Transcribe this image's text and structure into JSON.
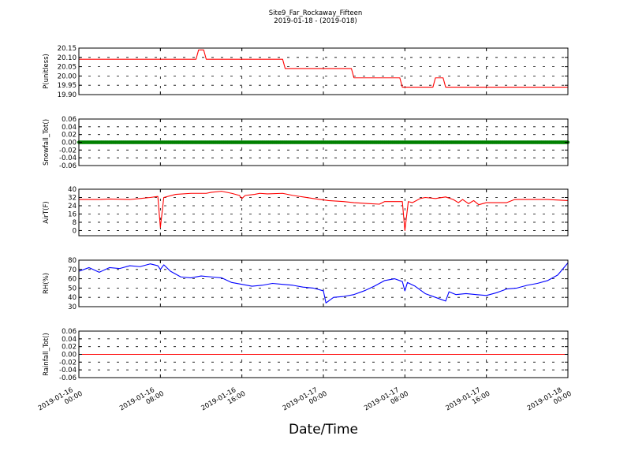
{
  "figure": {
    "title": "Site9_Far_Rockaway_Fifteen",
    "subtitle": "2019-01-18 - (2019-018)",
    "xlabel": "Date/Time"
  },
  "x_axis": {
    "start": "2019-01-16 00:00",
    "end": "2019-01-18 00:00",
    "ticks": [
      {
        "t": "2019-01-16 00:00",
        "line1": "2019-01-16",
        "line2": "00:00"
      },
      {
        "t": "2019-01-16 08:00",
        "line1": "2019-01-16",
        "line2": "08:00"
      },
      {
        "t": "2019-01-16 16:00",
        "line1": "2019-01-16",
        "line2": "16:00"
      },
      {
        "t": "2019-01-17 00:00",
        "line1": "2019-01-17",
        "line2": "00:00"
      },
      {
        "t": "2019-01-17 08:00",
        "line1": "2019-01-17",
        "line2": "08:00"
      },
      {
        "t": "2019-01-17 16:00",
        "line1": "2019-01-17",
        "line2": "16:00"
      },
      {
        "t": "2019-01-18 00:00",
        "line1": "2019-01-18",
        "line2": "00:00"
      }
    ]
  },
  "chart_data": [
    {
      "type": "line",
      "ylabel": "P(unitless)",
      "ylim": [
        19.9,
        20.15
      ],
      "yticks": [
        "19.90",
        "19.95",
        "20.00",
        "20.05",
        "20.10",
        "20.15"
      ],
      "grid": true,
      "series": [
        {
          "color": "#ff0000",
          "points": [
            [
              "2019-01-16 00:00",
              20.09
            ],
            [
              "2019-01-16 11:30",
              20.09
            ],
            [
              "2019-01-16 11:45",
              20.14
            ],
            [
              "2019-01-16 12:15",
              20.14
            ],
            [
              "2019-01-16 12:30",
              20.09
            ],
            [
              "2019-01-16 20:00",
              20.09
            ],
            [
              "2019-01-16 20:15",
              20.04
            ],
            [
              "2019-01-17 02:45",
              20.04
            ],
            [
              "2019-01-17 03:00",
              19.99
            ],
            [
              "2019-01-17 07:30",
              19.99
            ],
            [
              "2019-01-17 07:45",
              19.94
            ],
            [
              "2019-01-17 10:45",
              19.94
            ],
            [
              "2019-01-17 11:00",
              19.99
            ],
            [
              "2019-01-17 11:45",
              19.99
            ],
            [
              "2019-01-17 12:00",
              19.94
            ],
            [
              "2019-01-18 00:00",
              19.94
            ]
          ]
        }
      ]
    },
    {
      "type": "line",
      "ylabel": "Snowfall_Tot()",
      "ylim": [
        -0.06,
        0.06
      ],
      "yticks": [
        "-0.06",
        "-0.04",
        "-0.02",
        "0.00",
        "0.02",
        "0.04",
        "0.06"
      ],
      "grid": true,
      "series": [
        {
          "color": "#008000",
          "marker": "dot",
          "points": [
            [
              "2019-01-16 00:00",
              0.0
            ],
            [
              "2019-01-18 00:00",
              0.0
            ]
          ]
        }
      ]
    },
    {
      "type": "line",
      "ylabel": "AirT(F)",
      "ylim": [
        -5,
        40
      ],
      "yticks": [
        "0",
        "8",
        "16",
        "24",
        "32",
        "40"
      ],
      "grid": true,
      "series": [
        {
          "color": "#ff0000",
          "points": [
            [
              "2019-01-16 00:00",
              30
            ],
            [
              "2019-01-16 02:00",
              30
            ],
            [
              "2019-01-16 03:00",
              30.5
            ],
            [
              "2019-01-16 05:00",
              30
            ],
            [
              "2019-01-16 06:00",
              31
            ],
            [
              "2019-01-16 07:00",
              32
            ],
            [
              "2019-01-16 07:45",
              33
            ],
            [
              "2019-01-16 08:00",
              3
            ],
            [
              "2019-01-16 08:20",
              32
            ],
            [
              "2019-01-16 09:30",
              35
            ],
            [
              "2019-01-16 11:00",
              36
            ],
            [
              "2019-01-16 12:30",
              36
            ],
            [
              "2019-01-16 13:00",
              37
            ],
            [
              "2019-01-16 14:00",
              38
            ],
            [
              "2019-01-16 15:00",
              36
            ],
            [
              "2019-01-16 15:45",
              34
            ],
            [
              "2019-01-16 16:00",
              31
            ],
            [
              "2019-01-16 16:20",
              34
            ],
            [
              "2019-01-16 17:15",
              35
            ],
            [
              "2019-01-16 17:45",
              36
            ],
            [
              "2019-01-16 18:30",
              35.5
            ],
            [
              "2019-01-16 20:00",
              36
            ],
            [
              "2019-01-16 21:00",
              34
            ],
            [
              "2019-01-16 23:00",
              31
            ],
            [
              "2019-01-17 00:30",
              29
            ],
            [
              "2019-01-17 02:00",
              28
            ],
            [
              "2019-01-17 03:00",
              27
            ],
            [
              "2019-01-17 04:30",
              26
            ],
            [
              "2019-01-17 05:30",
              25.5
            ],
            [
              "2019-01-17 06:00",
              28
            ],
            [
              "2019-01-17 07:45",
              28
            ],
            [
              "2019-01-17 08:00",
              0
            ],
            [
              "2019-01-17 08:20",
              28
            ],
            [
              "2019-01-17 08:45",
              27
            ],
            [
              "2019-01-17 09:30",
              31
            ],
            [
              "2019-01-17 10:00",
              32
            ],
            [
              "2019-01-17 11:00",
              31
            ],
            [
              "2019-01-17 12:00",
              32.5
            ],
            [
              "2019-01-17 12:45",
              30
            ],
            [
              "2019-01-17 13:15",
              27
            ],
            [
              "2019-01-17 13:40",
              30
            ],
            [
              "2019-01-17 14:15",
              26
            ],
            [
              "2019-01-17 14:45",
              29
            ],
            [
              "2019-01-17 15:15",
              25
            ],
            [
              "2019-01-17 16:00",
              27
            ],
            [
              "2019-01-17 18:00",
              27
            ],
            [
              "2019-01-17 18:45",
              30
            ],
            [
              "2019-01-17 20:00",
              30
            ],
            [
              "2019-01-17 22:00",
              30
            ],
            [
              "2019-01-18 00:00",
              29
            ]
          ]
        }
      ]
    },
    {
      "type": "line",
      "ylabel": "RH(%)",
      "ylim": [
        30,
        80
      ],
      "yticks": [
        "30",
        "40",
        "50",
        "60",
        "70",
        "80"
      ],
      "grid": true,
      "series": [
        {
          "color": "#0000ff",
          "points": [
            [
              "2019-01-16 00:00",
              68
            ],
            [
              "2019-01-16 01:00",
              72
            ],
            [
              "2019-01-16 02:00",
              67
            ],
            [
              "2019-01-16 03:00",
              72
            ],
            [
              "2019-01-16 04:00",
              71
            ],
            [
              "2019-01-16 05:00",
              74
            ],
            [
              "2019-01-16 06:00",
              73
            ],
            [
              "2019-01-16 07:00",
              76
            ],
            [
              "2019-01-16 07:45",
              74
            ],
            [
              "2019-01-16 08:00",
              70
            ],
            [
              "2019-01-16 08:20",
              75
            ],
            [
              "2019-01-16 09:00",
              68
            ],
            [
              "2019-01-16 10:00",
              62
            ],
            [
              "2019-01-16 11:00",
              61
            ],
            [
              "2019-01-16 12:00",
              63
            ],
            [
              "2019-01-16 13:00",
              62
            ],
            [
              "2019-01-16 14:00",
              61
            ],
            [
              "2019-01-16 15:00",
              56
            ],
            [
              "2019-01-16 16:00",
              54
            ],
            [
              "2019-01-16 17:00",
              52
            ],
            [
              "2019-01-16 18:00",
              53
            ],
            [
              "2019-01-16 19:00",
              55
            ],
            [
              "2019-01-16 20:00",
              54
            ],
            [
              "2019-01-16 21:00",
              53
            ],
            [
              "2019-01-16 22:00",
              51
            ],
            [
              "2019-01-16 23:00",
              50
            ],
            [
              "2019-01-17 00:00",
              47
            ],
            [
              "2019-01-17 00:15",
              34
            ],
            [
              "2019-01-17 01:00",
              40
            ],
            [
              "2019-01-17 02:00",
              41
            ],
            [
              "2019-01-17 03:00",
              43
            ],
            [
              "2019-01-17 04:00",
              47
            ],
            [
              "2019-01-17 05:00",
              52
            ],
            [
              "2019-01-17 06:00",
              58
            ],
            [
              "2019-01-17 07:00",
              60
            ],
            [
              "2019-01-17 07:45",
              57
            ],
            [
              "2019-01-17 08:00",
              47
            ],
            [
              "2019-01-17 08:15",
              56
            ],
            [
              "2019-01-17 09:00",
              52
            ],
            [
              "2019-01-17 10:00",
              44
            ],
            [
              "2019-01-17 11:00",
              40
            ],
            [
              "2019-01-17 12:00",
              36
            ],
            [
              "2019-01-17 12:20",
              46
            ],
            [
              "2019-01-17 13:00",
              43
            ],
            [
              "2019-01-17 14:00",
              44
            ],
            [
              "2019-01-17 15:00",
              43
            ],
            [
              "2019-01-17 16:00",
              42
            ],
            [
              "2019-01-17 17:00",
              45
            ],
            [
              "2019-01-17 18:00",
              49
            ],
            [
              "2019-01-17 19:00",
              50
            ],
            [
              "2019-01-17 20:00",
              53
            ],
            [
              "2019-01-17 21:00",
              55
            ],
            [
              "2019-01-17 22:00",
              58
            ],
            [
              "2019-01-17 23:00",
              64
            ],
            [
              "2019-01-18 00:00",
              77
            ]
          ]
        }
      ]
    },
    {
      "type": "line",
      "ylabel": "Rainfall_Tot()",
      "ylim": [
        -0.06,
        0.06
      ],
      "yticks": [
        "-0.06",
        "-0.04",
        "-0.02",
        "0.00",
        "0.02",
        "0.04",
        "0.06"
      ],
      "grid": true,
      "series": [
        {
          "color": "#ff0000",
          "points": [
            [
              "2019-01-16 00:00",
              0.0
            ],
            [
              "2019-01-18 00:00",
              0.0
            ]
          ]
        }
      ]
    }
  ]
}
